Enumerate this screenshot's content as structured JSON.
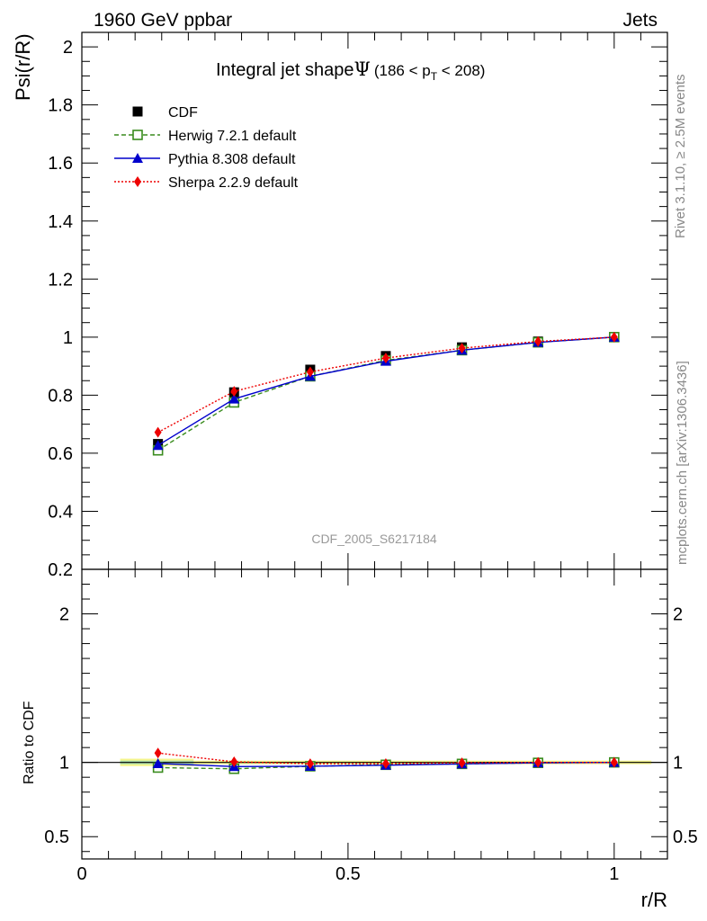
{
  "header": {
    "left": "1960 GeV ppbar",
    "right": "Jets"
  },
  "side": {
    "rivet": "Rivet 3.1.10, ≥ 2.5M events",
    "mcplots": "mcplots.cern.ch [arXiv:1306.3436]"
  },
  "chart_data": [
    {
      "type": "line",
      "title": "Integral jet shape Ψ (186 < p_T < 208)",
      "title_parts": {
        "main": "Integral jet shape",
        "psi": "Ψ",
        "range_pre": "(186 < p",
        "range_sub": "T",
        "range_post": " < 208)"
      },
      "ylabel": "Psi(r/R)",
      "xlabel": "r/R",
      "watermark": "CDF_2005_S6217184",
      "xlim": [
        0,
        1.1
      ],
      "ylim": [
        0.2,
        2.05
      ],
      "yticks": [
        "0.2",
        "0.4",
        "0.6",
        "0.8",
        "1",
        "1.2",
        "1.4",
        "1.6",
        "1.8",
        "2"
      ],
      "legend_position": "top-left",
      "x": [
        0.143,
        0.286,
        0.429,
        0.571,
        0.714,
        0.857,
        1.0
      ],
      "series": [
        {
          "name": "CDF",
          "color": "#000000",
          "marker": "filled-square",
          "style": "points",
          "values": [
            0.632,
            0.81,
            0.888,
            0.935,
            0.965,
            0.985,
            1.0
          ]
        },
        {
          "name": "Herwig 7.2.1 default",
          "color": "#3a8c1e",
          "marker": "open-square",
          "style": "dashed",
          "values": [
            0.61,
            0.775,
            0.865,
            0.92,
            0.955,
            0.982,
            1.0
          ]
        },
        {
          "name": "Pythia 8.308 default",
          "color": "#0000cc",
          "marker": "triangle",
          "style": "solid",
          "values": [
            0.627,
            0.787,
            0.865,
            0.917,
            0.955,
            0.982,
            1.0
          ]
        },
        {
          "name": "Sherpa 2.2.9 default",
          "color": "#ee0000",
          "marker": "diamond",
          "style": "dotted",
          "values": [
            0.672,
            0.813,
            0.88,
            0.928,
            0.962,
            0.985,
            1.0
          ]
        }
      ]
    },
    {
      "type": "line",
      "ylabel": "Ratio to CDF",
      "xlabel": "r/R",
      "xlim": [
        0,
        1.1
      ],
      "ylim": [
        0.35,
        2.3
      ],
      "yticks": [
        "0.5",
        "1",
        "2"
      ],
      "xticks": [
        "0",
        "0.5",
        "1"
      ],
      "x": [
        0.143,
        0.286,
        0.429,
        0.571,
        0.714,
        0.857,
        1.0
      ],
      "band_color_outer": "#f5f58c",
      "band_color_inner": "#aaddaa",
      "series": [
        {
          "name": "Herwig 7.2.1 default",
          "color": "#3a8c1e",
          "marker": "open-square",
          "style": "dashed",
          "values": [
            0.965,
            0.957,
            0.974,
            0.984,
            0.99,
            0.997,
            1.0
          ]
        },
        {
          "name": "Pythia 8.308 default",
          "color": "#0000cc",
          "marker": "triangle",
          "style": "solid",
          "values": [
            0.992,
            0.972,
            0.974,
            0.981,
            0.99,
            0.997,
            1.0
          ]
        },
        {
          "name": "Sherpa 2.2.9 default",
          "color": "#ee0000",
          "marker": "diamond",
          "style": "dotted",
          "values": [
            1.063,
            1.004,
            0.991,
            0.992,
            0.997,
            1.0,
            1.0
          ]
        }
      ]
    }
  ]
}
